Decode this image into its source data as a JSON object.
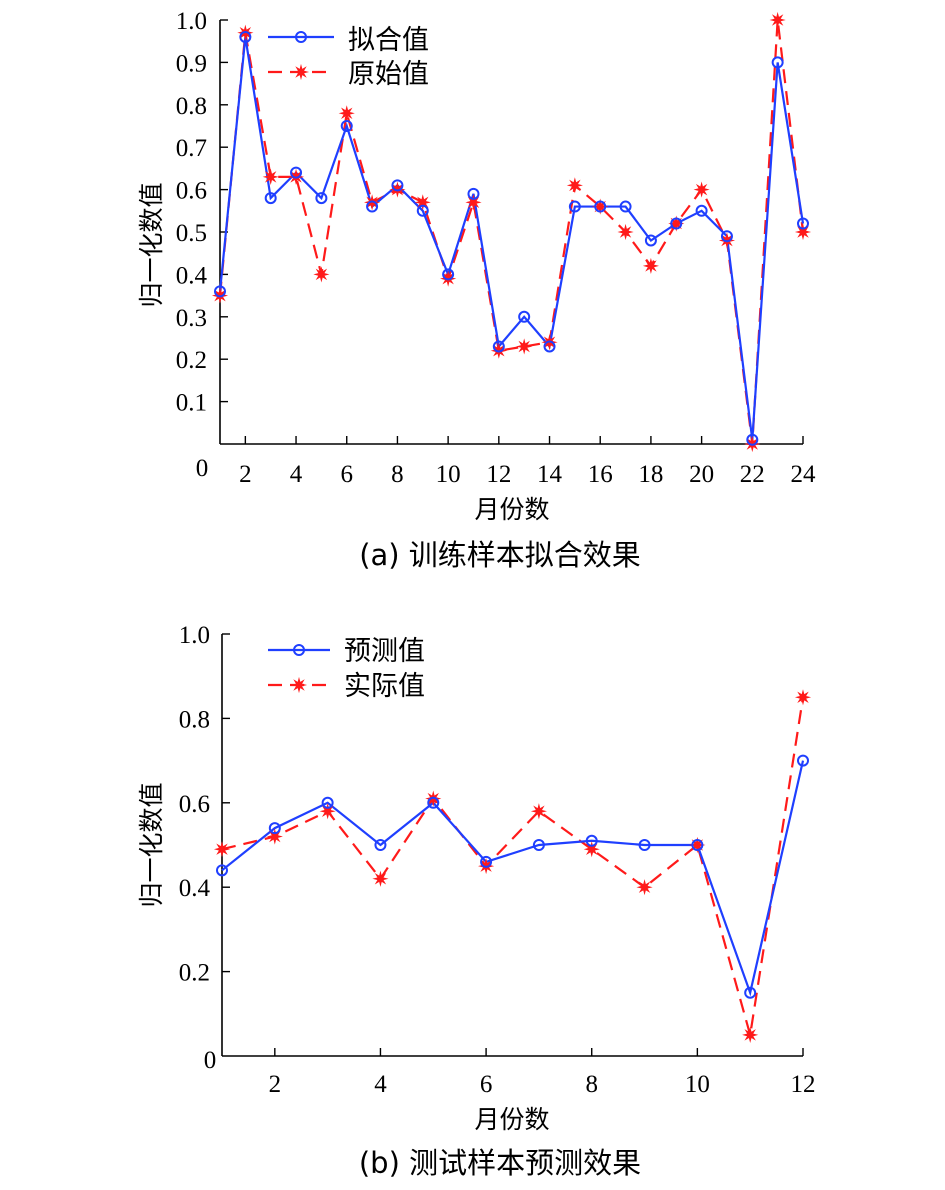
{
  "chart_data": [
    {
      "type": "line",
      "caption": "(a) 训练样本拟合效果",
      "xlabel": "月份数",
      "ylabel": "归一化数值",
      "xlim": [
        1,
        24
      ],
      "ylim": [
        0,
        1.0
      ],
      "x_ticks": [
        "2",
        "4",
        "6",
        "8",
        "10",
        "12",
        "14",
        "16",
        "18",
        "20",
        "22",
        "24"
      ],
      "y_ticks": [
        "0",
        "0.1",
        "0.2",
        "0.3",
        "0.4",
        "0.5",
        "0.6",
        "0.7",
        "0.8",
        "0.9",
        "1.0"
      ],
      "legend_position": "top-left",
      "x": [
        1,
        2,
        3,
        4,
        5,
        6,
        7,
        8,
        9,
        10,
        11,
        12,
        13,
        14,
        15,
        16,
        17,
        18,
        19,
        20,
        21,
        22,
        23,
        24
      ],
      "series": [
        {
          "name": "拟合值",
          "color": "#1f3fff",
          "marker": "circle",
          "line": "solid",
          "values": [
            0.36,
            0.96,
            0.58,
            0.64,
            0.58,
            0.75,
            0.56,
            0.61,
            0.55,
            0.4,
            0.59,
            0.23,
            0.3,
            0.23,
            0.56,
            0.56,
            0.56,
            0.48,
            0.52,
            0.55,
            0.49,
            0.01,
            0.9,
            0.52
          ]
        },
        {
          "name": "原始值",
          "color": "#ff1a1a",
          "marker": "star",
          "line": "dashed",
          "values": [
            0.35,
            0.97,
            0.63,
            0.63,
            0.4,
            0.78,
            0.57,
            0.6,
            0.57,
            0.39,
            0.57,
            0.22,
            0.23,
            0.24,
            0.61,
            0.56,
            0.5,
            0.42,
            0.52,
            0.6,
            0.48,
            0.0,
            1.0,
            0.5
          ]
        }
      ]
    },
    {
      "type": "line",
      "caption": "(b) 测试样本预测效果",
      "xlabel": "月份数",
      "ylabel": "归一化数值",
      "xlim": [
        1,
        12
      ],
      "ylim": [
        0,
        1.0
      ],
      "x_ticks": [
        "2",
        "4",
        "6",
        "8",
        "10",
        "12"
      ],
      "y_ticks": [
        "0",
        "0.2",
        "0.4",
        "0.6",
        "0.8",
        "1.0"
      ],
      "legend_position": "top-left",
      "x": [
        1,
        2,
        3,
        4,
        5,
        6,
        7,
        8,
        9,
        10,
        11,
        12
      ],
      "series": [
        {
          "name": "预测值",
          "color": "#1f3fff",
          "marker": "circle",
          "line": "solid",
          "values": [
            0.44,
            0.54,
            0.6,
            0.5,
            0.6,
            0.46,
            0.5,
            0.51,
            0.5,
            0.5,
            0.15,
            0.7
          ]
        },
        {
          "name": "实际值",
          "color": "#ff1a1a",
          "marker": "star",
          "line": "dashed",
          "values": [
            0.49,
            0.52,
            0.58,
            0.42,
            0.61,
            0.45,
            0.58,
            0.49,
            0.4,
            0.5,
            0.05,
            0.85
          ]
        }
      ]
    }
  ]
}
